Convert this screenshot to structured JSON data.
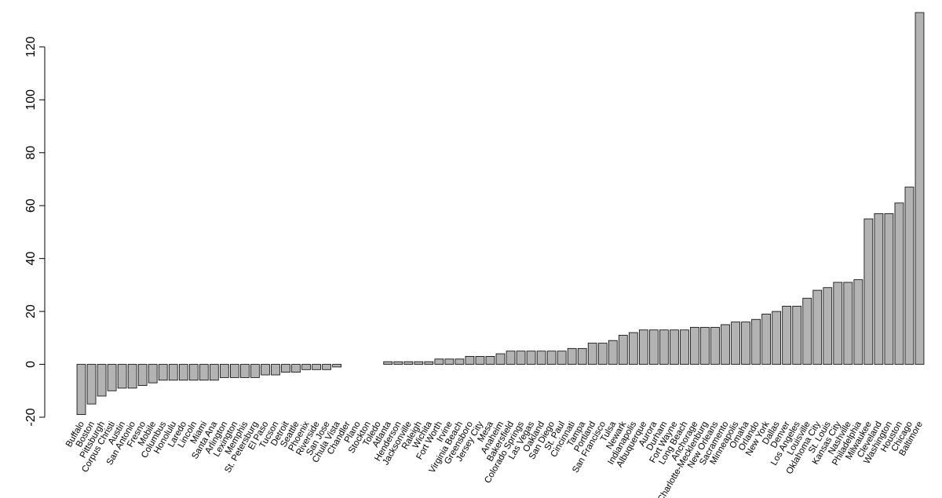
{
  "chart_data": {
    "type": "bar",
    "categories": [
      "Buffalo",
      "Boston",
      "Pittsburgh",
      "Corpus Christi",
      "Austin",
      "San Antonio",
      "Fresno",
      "Mobile",
      "Columbus",
      "Honolulu",
      "Laredo",
      "Lincoln",
      "Miami",
      "Santa Ana",
      "Arlington",
      "Lexington",
      "Memphis",
      "St. Petersburg",
      "El Paso",
      "Tucson",
      "Detroit",
      "Seattle",
      "Phoenix",
      "Riverside",
      "San Jose",
      "Chula Vista",
      "Chandler",
      "Plano",
      "Stockton",
      "Toledo",
      "Atlanta",
      "Henderson",
      "Jacksonville",
      "Raleigh",
      "Wichita",
      "Fort Worth",
      "Irvine",
      "Virginia Beach",
      "Greensboro",
      "Jersey City",
      "Mesa",
      "Anaheim",
      "Bakersfield",
      "Colorado Springs",
      "Las Vegas",
      "Oakland",
      "San Diego",
      "St. Paul",
      "Cincinnati",
      "Tampa",
      "Portland",
      "San Francisco",
      "Tulsa",
      "Newark",
      "Indianapolis",
      "Albuquerque",
      "Aurora",
      "Durham",
      "Fort Wayne",
      "Long Beach",
      "Anchorage",
      "Charlotte-Mecklenburg",
      "New Orleans",
      "Sacramento",
      "Minneapolis",
      "Omaha",
      "Orlando",
      "New York",
      "Dallas",
      "Denver",
      "Los Angeles",
      "Louisville",
      "Oklahoma City",
      "St. Louis",
      "Kansas City",
      "Nashville",
      "Philadelphia",
      "Milwaukee",
      "Cleveland",
      "Washington",
      "Houston",
      "Chicago",
      "Baltimore"
    ],
    "values": [
      -19,
      -15,
      -12,
      -10,
      -9,
      -9,
      -8,
      -7,
      -6,
      -6,
      -6,
      -6,
      -6,
      -6,
      -5,
      -5,
      -5,
      -5,
      -4,
      -4,
      -3,
      -3,
      -2,
      -2,
      -2,
      -1,
      0,
      0,
      0,
      0,
      1,
      1,
      1,
      1,
      1,
      2,
      2,
      2,
      3,
      3,
      3,
      4,
      5,
      5,
      5,
      5,
      5,
      5,
      6,
      6,
      8,
      8,
      9,
      11,
      12,
      13,
      13,
      13,
      13,
      13,
      14,
      14,
      14,
      15,
      16,
      16,
      17,
      19,
      20,
      22,
      22,
      25,
      28,
      29,
      31,
      31,
      32,
      55,
      57,
      57,
      61,
      67,
      133
    ],
    "color": "#b3b3b3",
    "ylim": [
      -20,
      133
    ],
    "yticks": [
      -20,
      0,
      20,
      40,
      60,
      80,
      100,
      120
    ]
  }
}
